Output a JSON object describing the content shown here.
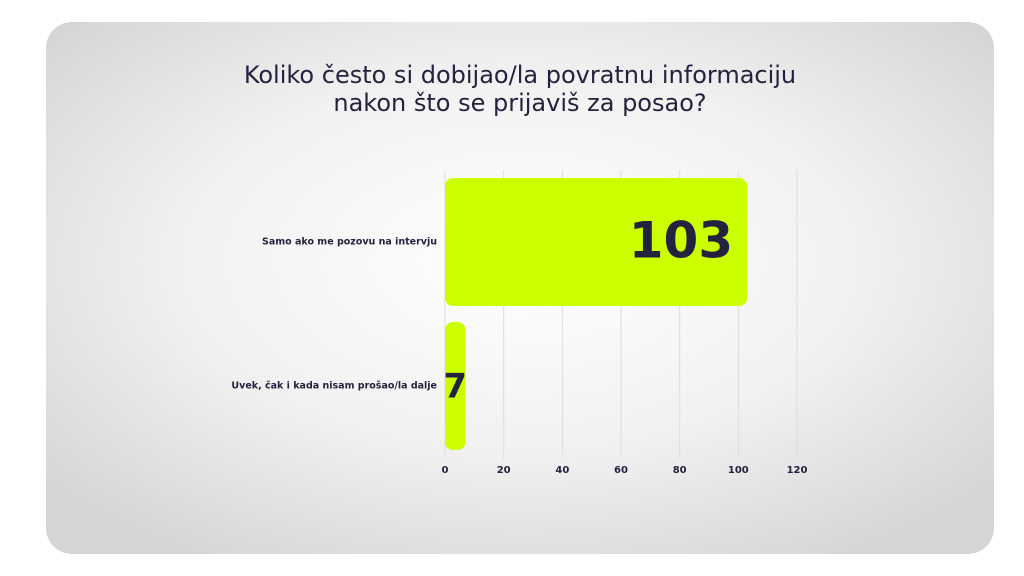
{
  "chart_data": {
    "type": "bar",
    "orientation": "horizontal",
    "title": [
      "Koliko često si dobijao/la povratnu informaciju",
      "nakon što se prijaviš za posao?"
    ],
    "categories": [
      "Samo ako me pozovu na intervju",
      "Uvek, čak i kada nisam prošao/la dalje"
    ],
    "values": [
      103,
      7
    ],
    "color": "#ccff00",
    "xlim": [
      0,
      120
    ],
    "xticks": [
      0,
      20,
      40,
      60,
      80,
      100,
      120
    ],
    "grid": true
  }
}
